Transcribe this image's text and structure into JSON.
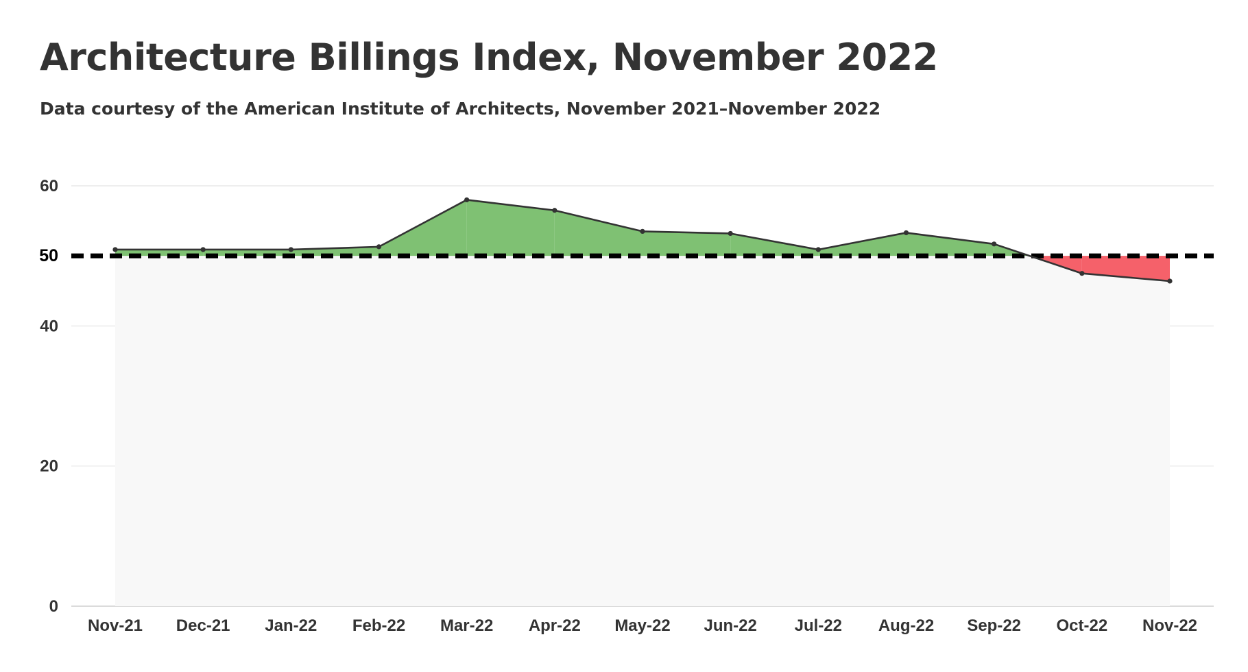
{
  "title": "Architecture Billings Index, November 2022",
  "subtitle": "Data courtesy of the American Institute of Architects, November 2021–November 2022",
  "chart_data": {
    "type": "area",
    "title": "Architecture Billings Index, November 2022",
    "subtitle": "Data courtesy of the American Institute of Architects, November 2021–November 2022",
    "xlabel": "",
    "ylabel": "",
    "categories": [
      "Nov-21",
      "Dec-21",
      "Jan-22",
      "Feb-22",
      "Mar-22",
      "Apr-22",
      "May-22",
      "Jun-22",
      "Jul-22",
      "Aug-22",
      "Sep-22",
      "Oct-22",
      "Nov-22"
    ],
    "series": [
      {
        "values": [
          50.9,
          50.9,
          50.9,
          51.3,
          58.0,
          56.5,
          53.5,
          53.2,
          50.9,
          53.3,
          51.7,
          47.5,
          46.4
        ]
      }
    ],
    "reference_line": 50,
    "y_ticks": [
      0,
      20,
      40,
      50,
      60
    ],
    "ylim": [
      0,
      60
    ],
    "grid": true,
    "colors": {
      "above": "#7fc173",
      "below": "#f5616a",
      "line": "#333333",
      "plot_band": "#f8f8f8",
      "grid": "#e3e3e3",
      "reference": "#000000"
    }
  }
}
